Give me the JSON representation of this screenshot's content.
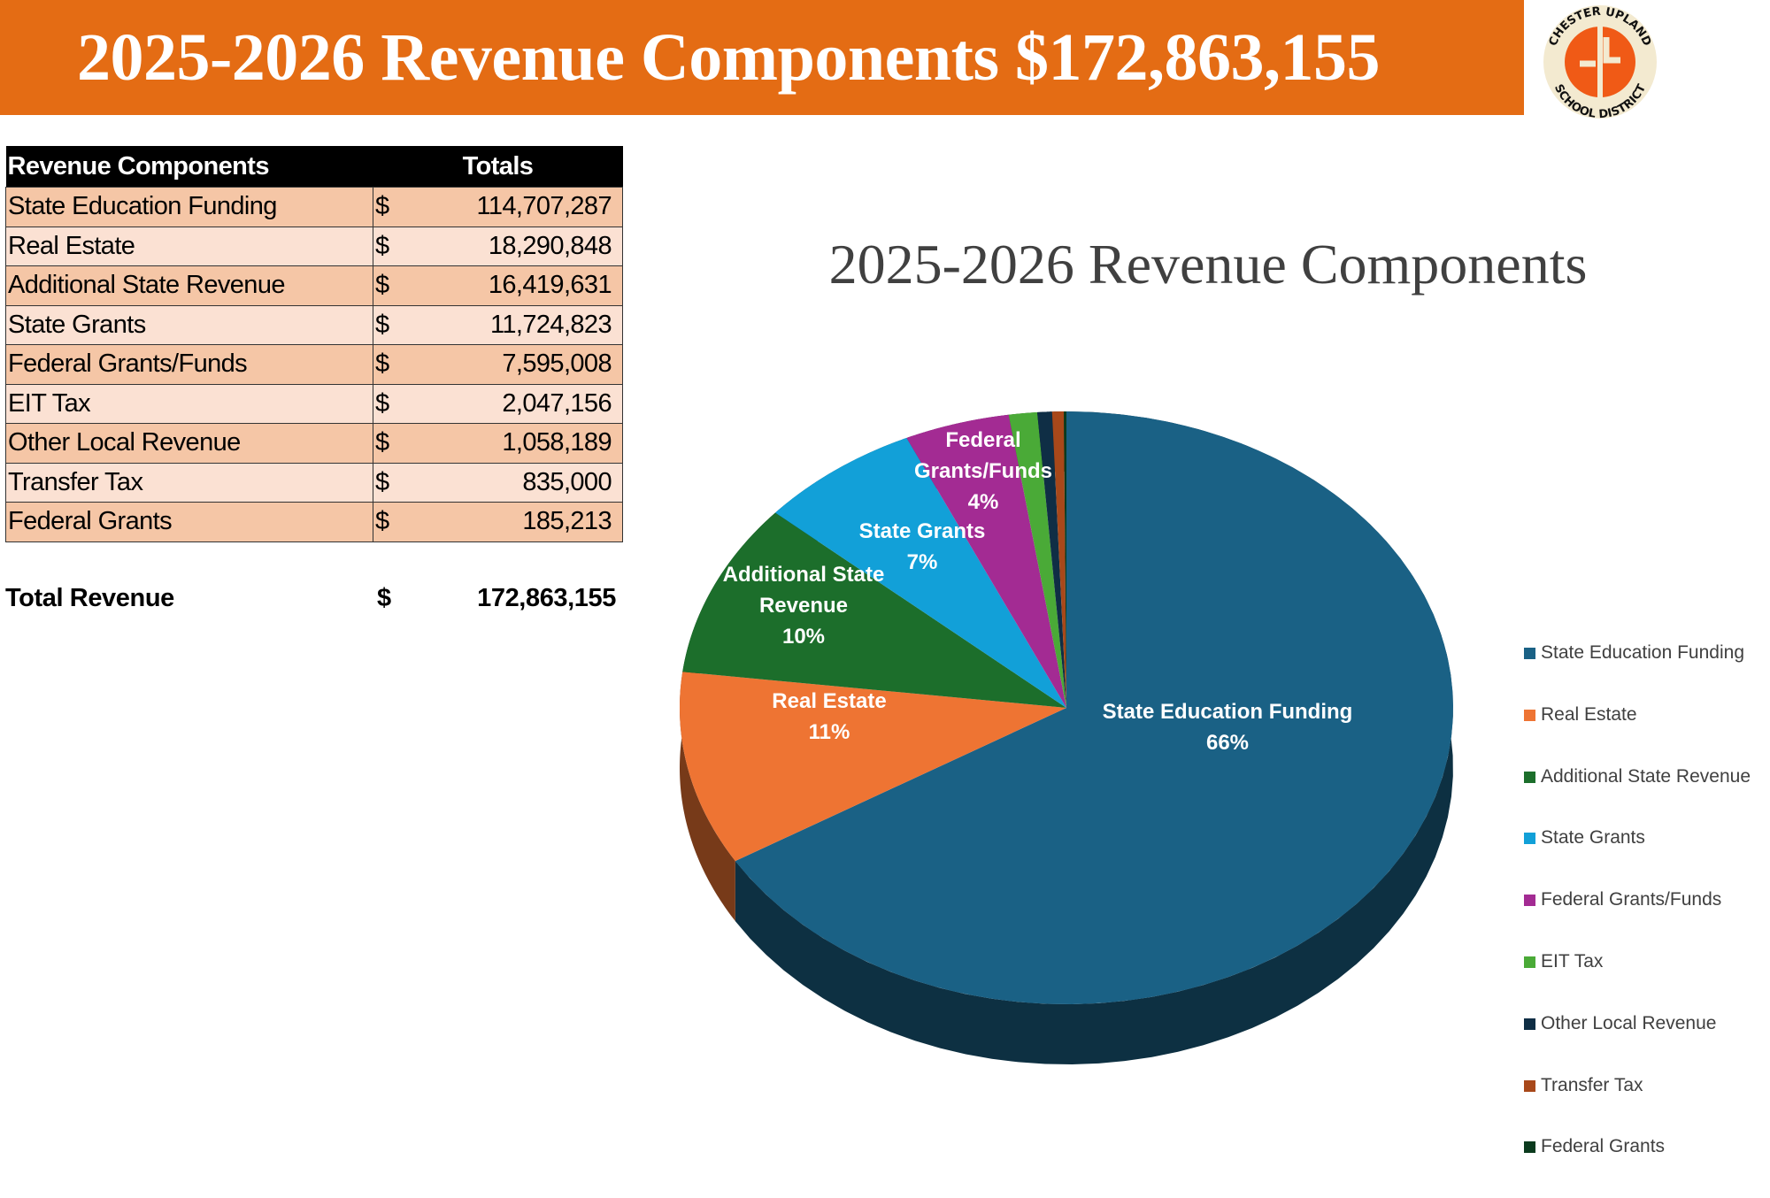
{
  "header": {
    "title": "2025-2026 Revenue Components $172,863,155"
  },
  "logo": {
    "text_top": "CHESTER UPLAND",
    "text_bottom": "SCHOOL DISTRICT"
  },
  "table": {
    "columns": [
      "Revenue Components",
      "Totals"
    ],
    "currency": "$",
    "rows": [
      {
        "name": "State Education Funding",
        "amount": "114,707,287"
      },
      {
        "name": "Real Estate",
        "amount": "18,290,848"
      },
      {
        "name": "Additional State Revenue",
        "amount": "16,419,631"
      },
      {
        "name": "State Grants",
        "amount": "11,724,823"
      },
      {
        "name": "Federal Grants/Funds",
        "amount": "7,595,008"
      },
      {
        "name": "EIT Tax",
        "amount": "2,047,156"
      },
      {
        "name": "Other Local Revenue",
        "amount": "1,058,189"
      },
      {
        "name": "Transfer Tax",
        "amount": "835,000"
      },
      {
        "name": "Federal Grants",
        "amount": "185,213"
      }
    ],
    "total_label": "Total Revenue",
    "total_currency": "$",
    "total_amount": "172,863,155"
  },
  "chart_data": {
    "type": "pie",
    "title": "2025-2026 Revenue Components",
    "legend_position": "right",
    "categories": [
      "State Education Funding",
      "Real Estate",
      "Additional State Revenue",
      "State Grants",
      "Federal Grants/Funds",
      "EIT Tax",
      "Other Local Revenue",
      "Transfer Tax",
      "Federal Grants"
    ],
    "values": [
      114707287,
      18290848,
      16419631,
      11724823,
      7595008,
      2047156,
      1058189,
      835000,
      185213
    ],
    "colors": [
      "#1a6185",
      "#ee7433",
      "#1c6e2b",
      "#12a0d8",
      "#a32b93",
      "#4aaa37",
      "#0f2e45",
      "#a8481a",
      "#0b3b1e"
    ],
    "data_labels": [
      {
        "lines": [
          "State Education Funding",
          "66%"
        ]
      },
      {
        "lines": [
          "Real Estate",
          "11%"
        ]
      },
      {
        "lines": [
          "Additional State",
          "Revenue",
          "10%"
        ]
      },
      {
        "lines": [
          "State Grants",
          "7%"
        ]
      },
      {
        "lines": [
          "Federal",
          "Grants/Funds",
          "4%"
        ]
      },
      null,
      null,
      null,
      null
    ]
  }
}
